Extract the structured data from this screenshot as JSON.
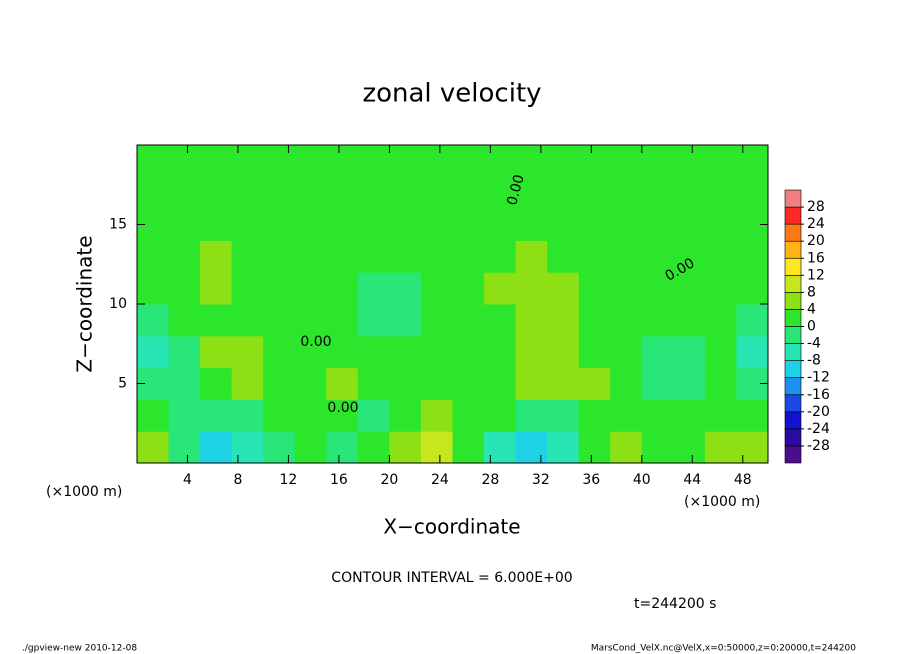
{
  "chart_data": {
    "type": "contour",
    "title": "zonal velocity",
    "xlabel": "X−coordinate",
    "ylabel": "Z−coordinate",
    "x_unit": "(×1000 m)",
    "y_unit": "(×1000 m)",
    "xlim": [
      0,
      50
    ],
    "ylim": [
      0,
      20
    ],
    "xticks": [
      4,
      8,
      12,
      16,
      20,
      24,
      28,
      32,
      36,
      40,
      44,
      48
    ],
    "yticks": [
      5,
      10,
      15
    ],
    "x_edges": [
      0,
      2.5,
      5,
      7.5,
      10,
      12.5,
      15,
      17.5,
      20,
      22.5,
      25,
      27.5,
      30,
      32.5,
      35,
      37.5,
      40,
      42.5,
      45,
      47.5,
      50
    ],
    "z_edges": [
      0,
      2,
      4,
      6,
      8,
      10,
      12,
      14,
      16,
      18,
      20
    ],
    "z": [
      [
        6,
        -2,
        -10,
        -8,
        -2,
        2,
        -2,
        2,
        4,
        8,
        2,
        -6,
        -10,
        -6,
        2,
        4,
        2,
        0,
        4,
        6
      ],
      [
        0,
        -4,
        -4,
        -2,
        0,
        2,
        0,
        -2,
        2,
        4,
        2,
        0,
        -2,
        -2,
        0,
        2,
        2,
        0,
        2,
        2
      ],
      [
        -4,
        -2,
        2,
        4,
        2,
        2,
        4,
        2,
        2,
        2,
        2,
        2,
        6,
        6,
        4,
        2,
        -2,
        -2,
        0,
        -4
      ],
      [
        -6,
        -2,
        4,
        4,
        2,
        2,
        2,
        0,
        2,
        0,
        2,
        2,
        6,
        6,
        2,
        2,
        -2,
        -4,
        0,
        -6
      ],
      [
        -2,
        0,
        2,
        2,
        0,
        0,
        2,
        -2,
        -2,
        0,
        2,
        2,
        4,
        4,
        2,
        2,
        0,
        0,
        0,
        -2
      ],
      [
        0,
        2,
        4,
        2,
        0,
        0,
        2,
        -2,
        -4,
        0,
        2,
        4,
        4,
        4,
        2,
        2,
        0,
        0,
        0,
        0
      ],
      [
        0,
        2,
        4,
        2,
        2,
        2,
        2,
        0,
        0,
        2,
        2,
        2,
        4,
        2,
        2,
        2,
        0,
        0,
        2,
        2
      ],
      [
        2,
        2,
        2,
        2,
        2,
        2,
        2,
        2,
        2,
        2,
        2,
        2,
        2,
        2,
        2,
        2,
        2,
        2,
        2,
        2
      ],
      [
        2,
        2,
        2,
        2,
        2,
        2,
        2,
        2,
        2,
        0,
        2,
        2,
        2,
        2,
        2,
        2,
        2,
        2,
        2,
        2
      ],
      [
        2,
        2,
        2,
        2,
        2,
        2,
        2,
        2,
        2,
        2,
        2,
        2,
        2,
        2,
        2,
        2,
        2,
        2,
        2,
        2
      ]
    ],
    "clim": [
      -32,
      32
    ],
    "cticks": [
      -28,
      -24,
      -20,
      -16,
      -12,
      -8,
      -4,
      0,
      4,
      8,
      12,
      16,
      20,
      24,
      28
    ],
    "colors": [
      "#4b0e8a",
      "#2a0aa0",
      "#1212d0",
      "#1a4ae6",
      "#1e90f0",
      "#1ed2e6",
      "#28e6b4",
      "#28e678",
      "#2ce62c",
      "#8ce014",
      "#c8e61e",
      "#ffe61e",
      "#ffb414",
      "#ff7814",
      "#ff2828",
      "#f08080"
    ],
    "contour_labels": [
      "0.00",
      "0.00",
      "0.00",
      "0.00"
    ],
    "contour_interval": "CONTOUR INTERVAL = 6.000E+00",
    "time": "t=244200 s",
    "footer_left": "./gpview-new  2010-12-08",
    "footer_right": "MarsCond_VelX.nc@VelX,x=0:50000,z=0:20000,t=244200"
  }
}
